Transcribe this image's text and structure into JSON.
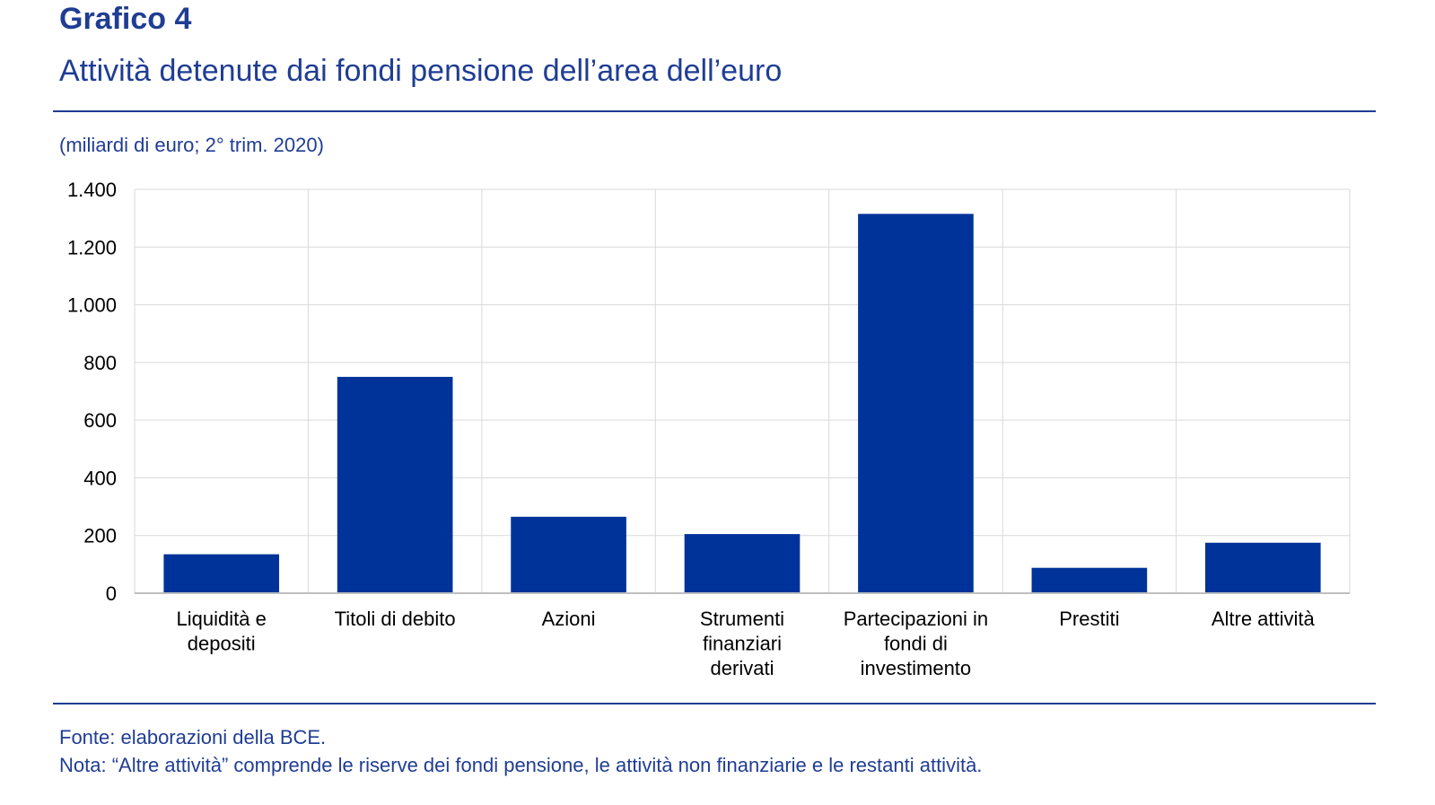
{
  "header": {
    "title": "Grafico 4",
    "subtitle": "Attività detenute dai fondi pensione dell’area dell’euro"
  },
  "unit_note": "(miliardi di euro; 2° trim. 2020)",
  "footer": {
    "source": "Fonte: elaborazioni della BCE.",
    "note": "Nota: “Altre attività” comprende le riserve dei fondi pensione, le attività non finanziarie e le restanti attività."
  },
  "colors": {
    "brand": "#1f3d93",
    "bar": "#003399",
    "grid": "#d9d9d9",
    "text": "#000000"
  },
  "chart_data": {
    "type": "bar",
    "categories": [
      [
        "Liquidità e",
        "depositi"
      ],
      [
        "Titoli di debito"
      ],
      [
        "Azioni"
      ],
      [
        "Strumenti",
        "finanziari",
        "derivati"
      ],
      [
        "Partecipazioni in",
        "fondi di",
        "investimento"
      ],
      [
        "Prestiti"
      ],
      [
        "Altre attività"
      ]
    ],
    "values": [
      135,
      750,
      265,
      205,
      1315,
      88,
      175
    ],
    "yticks": [
      {
        "value": 0,
        "label": "0"
      },
      {
        "value": 200,
        "label": "200"
      },
      {
        "value": 400,
        "label": "400"
      },
      {
        "value": 600,
        "label": "600"
      },
      {
        "value": 800,
        "label": "800"
      },
      {
        "value": 1000,
        "label": "1.000"
      },
      {
        "value": 1200,
        "label": "1.200"
      },
      {
        "value": 1400,
        "label": "1.400"
      }
    ],
    "ylim": [
      0,
      1400
    ],
    "grid": true,
    "xlabel": "",
    "ylabel": ""
  }
}
